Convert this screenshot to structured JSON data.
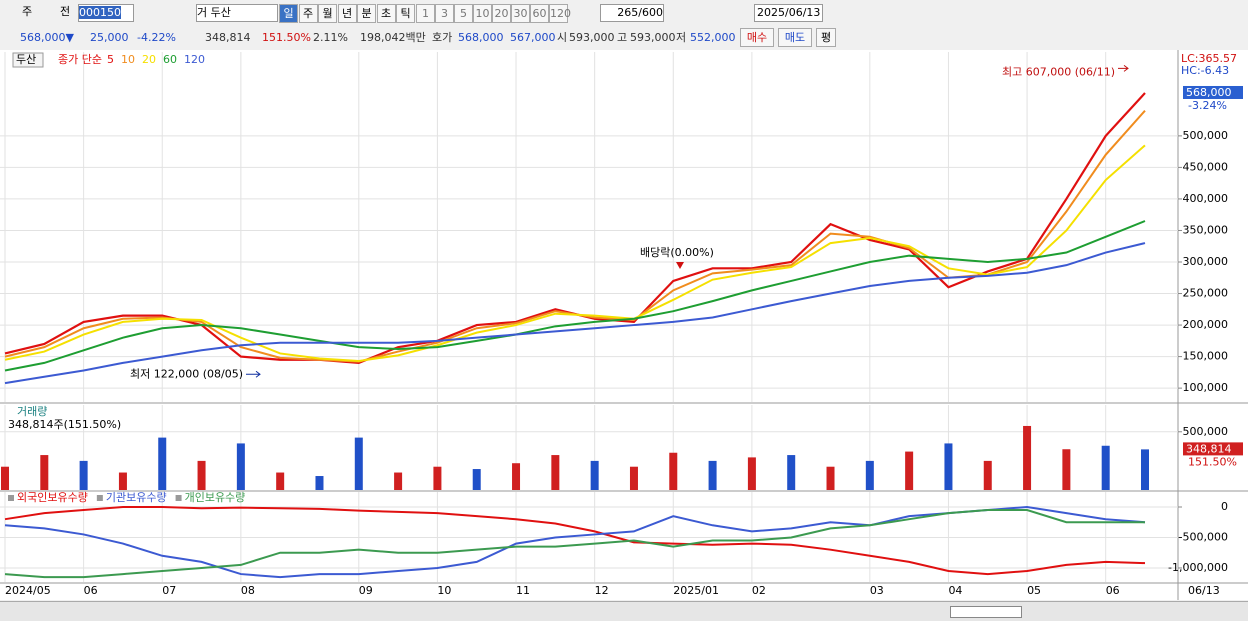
{
  "toolbar": {
    "type_label": "주",
    "prev_label": "전",
    "code": "000150",
    "name": "거 두산",
    "periods": [
      "일",
      "주",
      "월",
      "년",
      "분",
      "초",
      "틱"
    ],
    "counts": [
      "1",
      "3",
      "5",
      "10",
      "20",
      "30",
      "60",
      "120"
    ],
    "view_count": "265",
    "max_count": "/600",
    "date": "2025/06/13"
  },
  "quote": {
    "price": "568,000▼",
    "change": "25,000",
    "change_rate": "-4.22%",
    "volume": "348,814",
    "volume_rate": "151.50%",
    "turnover": "2.11%",
    "amount": "198,042백만",
    "ask_label": "호가",
    "ask": "568,000",
    "bid": "567,000",
    "open_label": "시",
    "open": "593,000",
    "high_label": "고",
    "high": "593,000",
    "low_label": "저",
    "low": "552,000",
    "buy": "매수",
    "sell": "매도",
    "avg": "평"
  },
  "chart_data": [
    {
      "type": "line",
      "pane_label": "두산",
      "legend_label": "종가 단순",
      "series": [
        {
          "name": "5",
          "color": "#e01010",
          "values": [
            155000,
            170000,
            205000,
            215000,
            215000,
            200000,
            150000,
            145000,
            145000,
            140000,
            165000,
            175000,
            200000,
            205000,
            225000,
            210000,
            205000,
            270000,
            290000,
            290000,
            300000,
            360000,
            335000,
            320000,
            260000,
            285000,
            305000,
            400000,
            500000,
            568000
          ]
        },
        {
          "name": "10",
          "color": "#f08c1e",
          "values": [
            150000,
            165000,
            195000,
            210000,
            212000,
            205000,
            165000,
            148000,
            145000,
            142000,
            158000,
            172000,
            195000,
            203000,
            222000,
            212000,
            208000,
            255000,
            282000,
            288000,
            295000,
            345000,
            340000,
            322000,
            275000,
            280000,
            300000,
            380000,
            470000,
            540000
          ]
        },
        {
          "name": "20",
          "color": "#f5e000",
          "values": [
            145000,
            158000,
            185000,
            205000,
            210000,
            208000,
            180000,
            155000,
            147000,
            143000,
            152000,
            168000,
            188000,
            200000,
            218000,
            215000,
            210000,
            240000,
            272000,
            283000,
            292000,
            330000,
            338000,
            325000,
            290000,
            280000,
            292000,
            350000,
            430000,
            485000
          ]
        },
        {
          "name": "60",
          "color": "#1e9e32",
          "values": [
            128000,
            140000,
            160000,
            180000,
            195000,
            200000,
            195000,
            185000,
            175000,
            165000,
            162000,
            165000,
            175000,
            185000,
            198000,
            205000,
            210000,
            222000,
            238000,
            255000,
            270000,
            285000,
            300000,
            310000,
            305000,
            300000,
            305000,
            315000,
            340000,
            365000
          ]
        },
        {
          "name": "120",
          "color": "#3c5ad2",
          "values": [
            108000,
            118000,
            128000,
            140000,
            150000,
            160000,
            168000,
            172000,
            172000,
            172000,
            172000,
            175000,
            180000,
            185000,
            190000,
            195000,
            200000,
            205000,
            212000,
            225000,
            238000,
            250000,
            262000,
            270000,
            275000,
            278000,
            283000,
            295000,
            315000,
            330000
          ]
        }
      ],
      "ylim": [
        78000,
        633000
      ],
      "yticks": [
        {
          "value": 100000,
          "label": "100,000"
        },
        {
          "value": 150000,
          "label": "150,000"
        },
        {
          "value": 200000,
          "label": "200,000"
        },
        {
          "value": 250000,
          "label": "250,000"
        },
        {
          "value": 300000,
          "label": "300,000"
        },
        {
          "value": 350000,
          "label": "350,000"
        },
        {
          "value": 400000,
          "label": "400,000"
        },
        {
          "value": 450000,
          "label": "450,000"
        },
        {
          "value": 500000,
          "label": "500,000"
        }
      ],
      "grid": true,
      "annotations": [
        {
          "label": "최고 607,000 (06/11)",
          "value": 607000
        },
        {
          "label": "최저 122,000 (08/05)",
          "value": 122000
        },
        {
          "label": "배당락(0.00%)"
        }
      ],
      "lc_label": "LC:365.57",
      "hc_label": "HC:-6.43",
      "last_label": {
        "value": 568000,
        "label": "568,000"
      },
      "last_change": "-3.24%"
    },
    {
      "type": "bar",
      "title": "거래량",
      "subtitle": "348,814주(151.50%)",
      "values": [
        200000,
        300000,
        250000,
        150000,
        450000,
        250000,
        400000,
        150000,
        120000,
        450000,
        150000,
        200000,
        180000,
        230000,
        300000,
        250000,
        200000,
        320000,
        250000,
        280000,
        300000,
        200000,
        250000,
        330000,
        400000,
        250000,
        550000,
        350000,
        380000,
        348814
      ],
      "colors": [
        "#d02020",
        "#d02020",
        "#2050c8",
        "#d02020",
        "#2050c8",
        "#d02020",
        "#2050c8",
        "#d02020",
        "#2050c8",
        "#2050c8",
        "#d02020",
        "#d02020",
        "#2050c8",
        "#d02020",
        "#d02020",
        "#2050c8",
        "#d02020",
        "#d02020",
        "#2050c8",
        "#d02020",
        "#2050c8",
        "#d02020",
        "#2050c8",
        "#d02020",
        "#2050c8",
        "#d02020",
        "#d02020",
        "#d02020",
        "#2050c8",
        "#2050c8"
      ],
      "ylim": [
        0,
        730000
      ],
      "yticks": [
        {
          "value": 500000,
          "label": "500,000"
        }
      ],
      "grid": true,
      "last_label": {
        "value": 348814,
        "label": "348,814"
      },
      "last_change": "151.50%"
    },
    {
      "type": "line",
      "categories": [
        "2024/05",
        null,
        "06",
        null,
        "07",
        null,
        "08",
        null,
        null,
        "09",
        null,
        "10",
        null,
        "11",
        null,
        "12",
        null,
        "2025/01",
        null,
        "02",
        null,
        null,
        "03",
        null,
        "04",
        null,
        "05",
        null,
        "06",
        null
      ],
      "end_label": "06/13",
      "series": [
        {
          "name": "외국인보유수량",
          "color": "#e01010",
          "values": [
            -200000,
            -100000,
            -50000,
            0,
            0,
            -20000,
            -10000,
            -20000,
            -30000,
            -60000,
            -80000,
            -100000,
            -150000,
            -200000,
            -270000,
            -400000,
            -580000,
            -600000,
            -620000,
            -600000,
            -620000,
            -700000,
            -800000,
            -900000,
            -1050000,
            -1100000,
            -1050000,
            -950000,
            -900000,
            -920000
          ]
        },
        {
          "name": "기관보유수량",
          "color": "#3c5ad2",
          "values": [
            -300000,
            -350000,
            -450000,
            -600000,
            -800000,
            -900000,
            -1100000,
            -1150000,
            -1100000,
            -1100000,
            -1050000,
            -1000000,
            -900000,
            -600000,
            -500000,
            -450000,
            -400000,
            -150000,
            -300000,
            -400000,
            -350000,
            -250000,
            -300000,
            -150000,
            -100000,
            -50000,
            0,
            -100000,
            -200000,
            -250000
          ]
        },
        {
          "name": "개인보유수량",
          "color": "#3c9a50",
          "values": [
            -1100000,
            -1150000,
            -1150000,
            -1100000,
            -1050000,
            -1000000,
            -950000,
            -750000,
            -750000,
            -700000,
            -750000,
            -750000,
            -700000,
            -650000,
            -650000,
            -600000,
            -550000,
            -650000,
            -550000,
            -550000,
            -500000,
            -350000,
            -300000,
            -200000,
            -100000,
            -50000,
            -50000,
            -250000,
            -250000,
            -250000
          ]
        }
      ],
      "ylim": [
        -1230000,
        246000
      ],
      "yticks": [
        0,
        {
          "value": -500000,
          "label": "-500,000"
        },
        {
          "value": -1000000,
          "label": "-1,000,000"
        }
      ],
      "grid": true
    }
  ]
}
